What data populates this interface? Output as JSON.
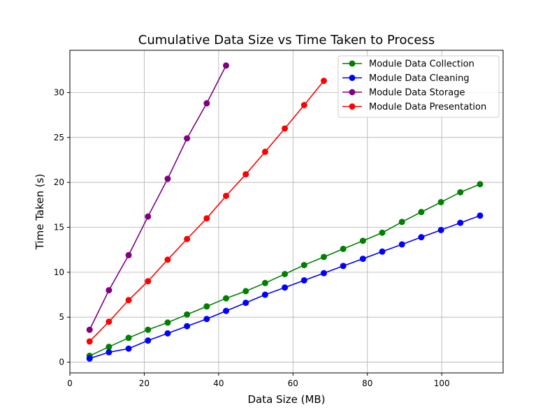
{
  "chart_data": {
    "type": "line",
    "title": "Cumulative Data Size vs Time Taken to Process",
    "xlabel": "Data Size (MB)",
    "ylabel": "Time Taken (s)",
    "xlim": [
      0,
      116.5
    ],
    "ylim": [
      -1.2,
      34.7
    ],
    "xticks": [
      0,
      20,
      40,
      60,
      80,
      100
    ],
    "yticks": [
      0,
      5,
      10,
      15,
      20,
      25,
      30
    ],
    "grid": true,
    "legend_position": "top-right",
    "series": [
      {
        "name": "Module Data Collection",
        "color": "#008000",
        "x": [
          5.3,
          10.5,
          15.8,
          21.0,
          26.3,
          31.5,
          36.8,
          42.0,
          47.3,
          52.5,
          57.8,
          63.0,
          68.3,
          73.5,
          78.8,
          84.0,
          89.3,
          94.5,
          99.8,
          105.0,
          110.3
        ],
        "y": [
          0.7,
          1.7,
          2.7,
          3.6,
          4.4,
          5.3,
          6.2,
          7.1,
          7.9,
          8.8,
          9.8,
          10.8,
          11.7,
          12.6,
          13.5,
          14.4,
          15.6,
          16.7,
          17.8,
          18.9,
          19.8
        ]
      },
      {
        "name": "Module Data Cleaning",
        "color": "#0000ff",
        "x": [
          5.3,
          10.5,
          15.8,
          21.0,
          26.3,
          31.5,
          36.8,
          42.0,
          47.3,
          52.5,
          57.8,
          63.0,
          68.3,
          73.5,
          78.8,
          84.0,
          89.3,
          94.5,
          99.8,
          105.0,
          110.3
        ],
        "y": [
          0.4,
          1.1,
          1.5,
          2.4,
          3.2,
          4.0,
          4.8,
          5.7,
          6.6,
          7.5,
          8.3,
          9.1,
          9.9,
          10.7,
          11.5,
          12.3,
          13.1,
          13.9,
          14.7,
          15.5,
          16.3
        ]
      },
      {
        "name": "Module Data Storage",
        "color": "#800080",
        "x": [
          5.3,
          10.5,
          15.8,
          21.0,
          26.3,
          31.5,
          36.8,
          42.0
        ],
        "y": [
          3.6,
          8.0,
          11.9,
          16.2,
          20.4,
          24.9,
          28.8,
          33.0
        ]
      },
      {
        "name": "Module Data Presentation",
        "color": "#ff0000",
        "x": [
          5.3,
          10.5,
          15.8,
          21.0,
          26.3,
          31.5,
          36.8,
          42.0,
          47.3,
          52.5,
          57.8,
          63.0,
          68.3
        ],
        "y": [
          2.3,
          4.5,
          6.9,
          9.0,
          11.4,
          13.7,
          16.0,
          18.5,
          20.9,
          23.4,
          26.0,
          28.6,
          31.3
        ]
      }
    ]
  }
}
